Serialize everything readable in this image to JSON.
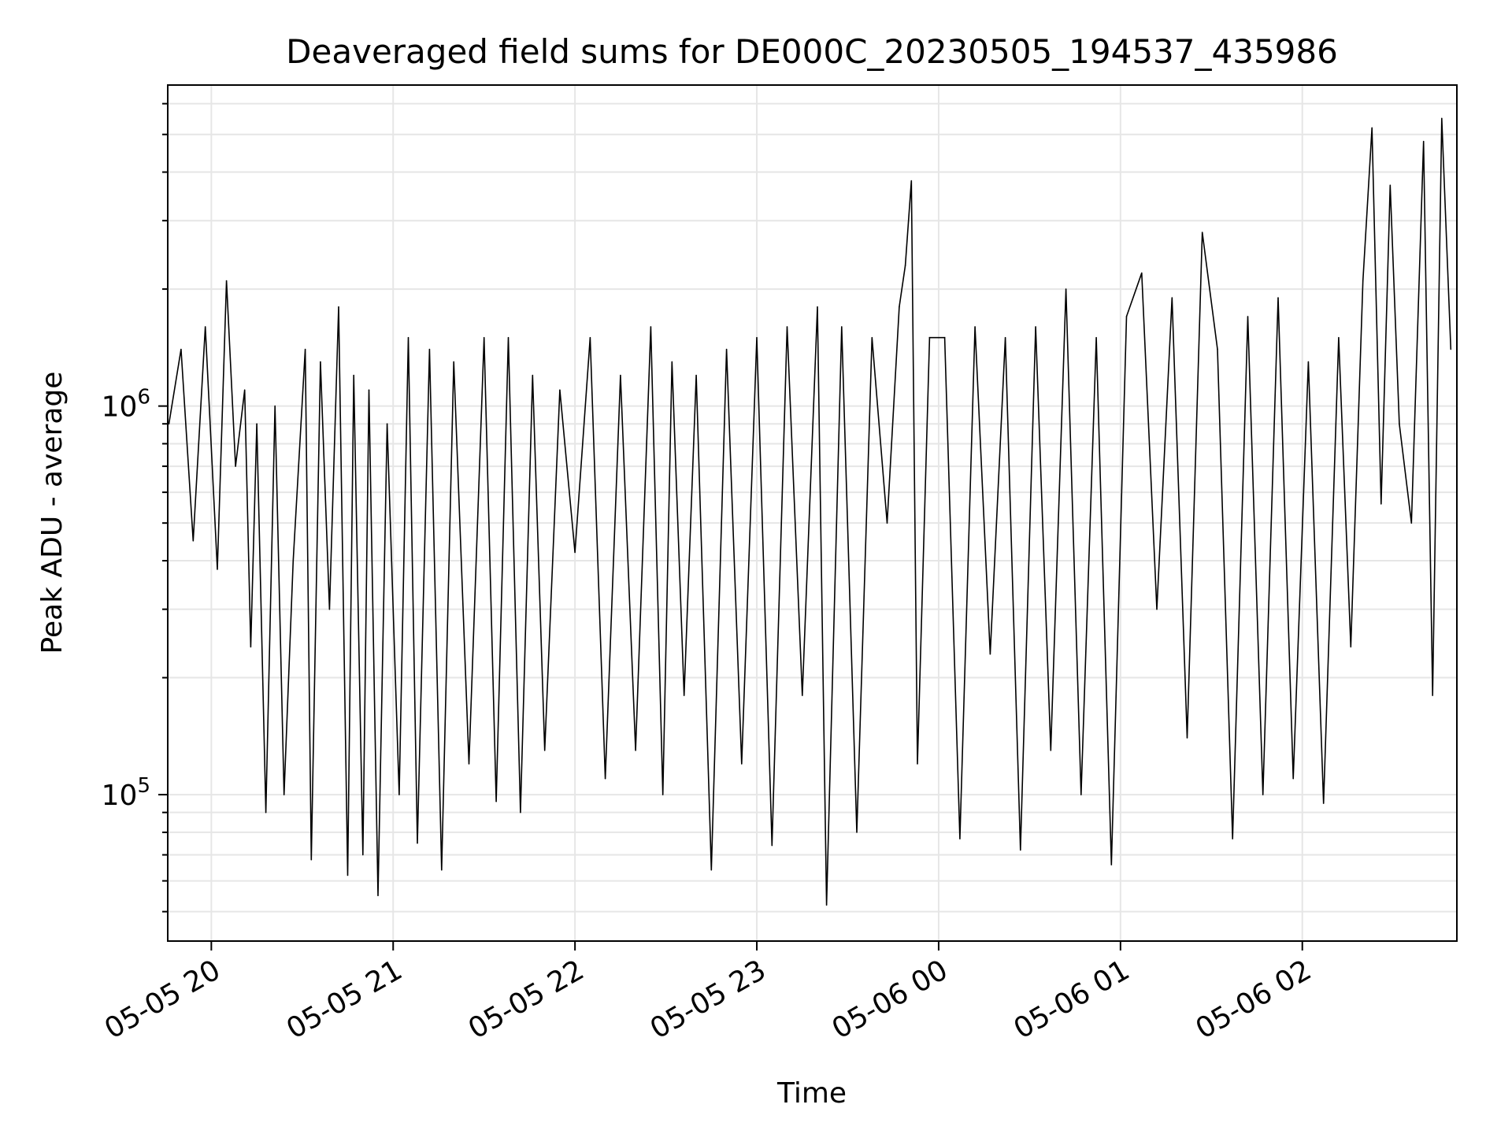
{
  "chart_data": {
    "type": "line",
    "title": "Deaveraged field sums for DE000C_20230505_194537_435986",
    "xlabel": "Time",
    "ylabel": "Peak ADU - average",
    "y_scale": "log",
    "x_range": [
      "2023-05-05 19:45:37",
      "2023-05-06 02:51:00"
    ],
    "ylim": [
      42000,
      6700000
    ],
    "grid": true,
    "line_color": "#000000",
    "grid_color": "#e6e6e6",
    "x_ticks": [
      {
        "value": "2023-05-05 20:00",
        "label": "05-05 20"
      },
      {
        "value": "2023-05-05 21:00",
        "label": "05-05 21"
      },
      {
        "value": "2023-05-05 22:00",
        "label": "05-05 22"
      },
      {
        "value": "2023-05-05 23:00",
        "label": "05-05 23"
      },
      {
        "value": "2023-05-06 00:00",
        "label": "05-06 00"
      },
      {
        "value": "2023-05-06 01:00",
        "label": "05-06 01"
      },
      {
        "value": "2023-05-06 02:00",
        "label": "05-06 02"
      }
    ],
    "y_ticks": [
      {
        "value": 100000,
        "base": "10",
        "exp": "5"
      },
      {
        "value": 1000000,
        "base": "10",
        "exp": "6"
      }
    ],
    "series": [
      {
        "x": [
          "2023-05-05 19:46",
          "2023-05-05 19:50",
          "2023-05-05 19:54",
          "2023-05-05 19:58",
          "2023-05-05 20:02",
          "2023-05-05 20:05",
          "2023-05-05 20:08",
          "2023-05-05 20:11",
          "2023-05-05 20:13",
          "2023-05-05 20:15",
          "2023-05-05 20:18",
          "2023-05-05 20:21",
          "2023-05-05 20:24",
          "2023-05-05 20:27",
          "2023-05-05 20:31",
          "2023-05-05 20:33",
          "2023-05-05 20:36",
          "2023-05-05 20:39",
          "2023-05-05 20:42",
          "2023-05-05 20:45",
          "2023-05-05 20:47",
          "2023-05-05 20:50",
          "2023-05-05 20:52",
          "2023-05-05 20:55",
          "2023-05-05 20:58",
          "2023-05-05 21:02",
          "2023-05-05 21:05",
          "2023-05-05 21:08",
          "2023-05-05 21:12",
          "2023-05-05 21:16",
          "2023-05-05 21:20",
          "2023-05-05 21:25",
          "2023-05-05 21:30",
          "2023-05-05 21:34",
          "2023-05-05 21:38",
          "2023-05-05 21:42",
          "2023-05-05 21:46",
          "2023-05-05 21:50",
          "2023-05-05 21:55",
          "2023-05-05 22:00",
          "2023-05-05 22:05",
          "2023-05-05 22:10",
          "2023-05-05 22:15",
          "2023-05-05 22:20",
          "2023-05-05 22:25",
          "2023-05-05 22:29",
          "2023-05-05 22:32",
          "2023-05-05 22:36",
          "2023-05-05 22:40",
          "2023-05-05 22:45",
          "2023-05-05 22:50",
          "2023-05-05 22:55",
          "2023-05-05 23:00",
          "2023-05-05 23:05",
          "2023-05-05 23:10",
          "2023-05-05 23:15",
          "2023-05-05 23:20",
          "2023-05-05 23:23",
          "2023-05-05 23:28",
          "2023-05-05 23:33",
          "2023-05-05 23:38",
          "2023-05-05 23:43",
          "2023-05-05 23:47",
          "2023-05-05 23:49",
          "2023-05-05 23:51",
          "2023-05-05 23:53",
          "2023-05-05 23:57",
          "2023-05-06 00:02",
          "2023-05-06 00:07",
          "2023-05-06 00:12",
          "2023-05-06 00:17",
          "2023-05-06 00:22",
          "2023-05-06 00:27",
          "2023-05-06 00:32",
          "2023-05-06 00:37",
          "2023-05-06 00:42",
          "2023-05-06 00:47",
          "2023-05-06 00:52",
          "2023-05-06 00:57",
          "2023-05-06 01:02",
          "2023-05-06 01:07",
          "2023-05-06 01:12",
          "2023-05-06 01:17",
          "2023-05-06 01:22",
          "2023-05-06 01:27",
          "2023-05-06 01:32",
          "2023-05-06 01:37",
          "2023-05-06 01:42",
          "2023-05-06 01:47",
          "2023-05-06 01:52",
          "2023-05-06 01:57",
          "2023-05-06 02:02",
          "2023-05-06 02:07",
          "2023-05-06 02:12",
          "2023-05-06 02:16",
          "2023-05-06 02:20",
          "2023-05-06 02:23",
          "2023-05-06 02:26",
          "2023-05-06 02:29",
          "2023-05-06 02:32",
          "2023-05-06 02:36",
          "2023-05-06 02:40",
          "2023-05-06 02:43",
          "2023-05-06 02:46",
          "2023-05-06 02:49"
        ],
        "y": [
          900000,
          1400000,
          450000,
          1600000,
          380000,
          2100000,
          700000,
          1100000,
          240000,
          900000,
          90000,
          1000000,
          100000,
          400000,
          1400000,
          68000,
          1300000,
          300000,
          1800000,
          62000,
          1200000,
          70000,
          1100000,
          55000,
          900000,
          100000,
          1500000,
          75000,
          1400000,
          64000,
          1300000,
          120000,
          1500000,
          96000,
          1500000,
          90000,
          1200000,
          130000,
          1100000,
          420000,
          1500000,
          110000,
          1200000,
          130000,
          1600000,
          100000,
          1300000,
          180000,
          1200000,
          64000,
          1400000,
          120000,
          1500000,
          74000,
          1600000,
          180000,
          1800000,
          52000,
          1600000,
          80000,
          1500000,
          500000,
          1800000,
          2300000,
          3800000,
          120000,
          1500000,
          1500000,
          77000,
          1600000,
          230000,
          1500000,
          72000,
          1600000,
          130000,
          2000000,
          100000,
          1500000,
          66000,
          1700000,
          2200000,
          300000,
          1900000,
          140000,
          2800000,
          1400000,
          77000,
          1700000,
          100000,
          1900000,
          110000,
          1300000,
          95000,
          1500000,
          240000,
          2100000,
          5200000,
          560000,
          3700000,
          900000,
          500000,
          4800000,
          180000,
          5500000,
          1400000
        ]
      }
    ]
  }
}
